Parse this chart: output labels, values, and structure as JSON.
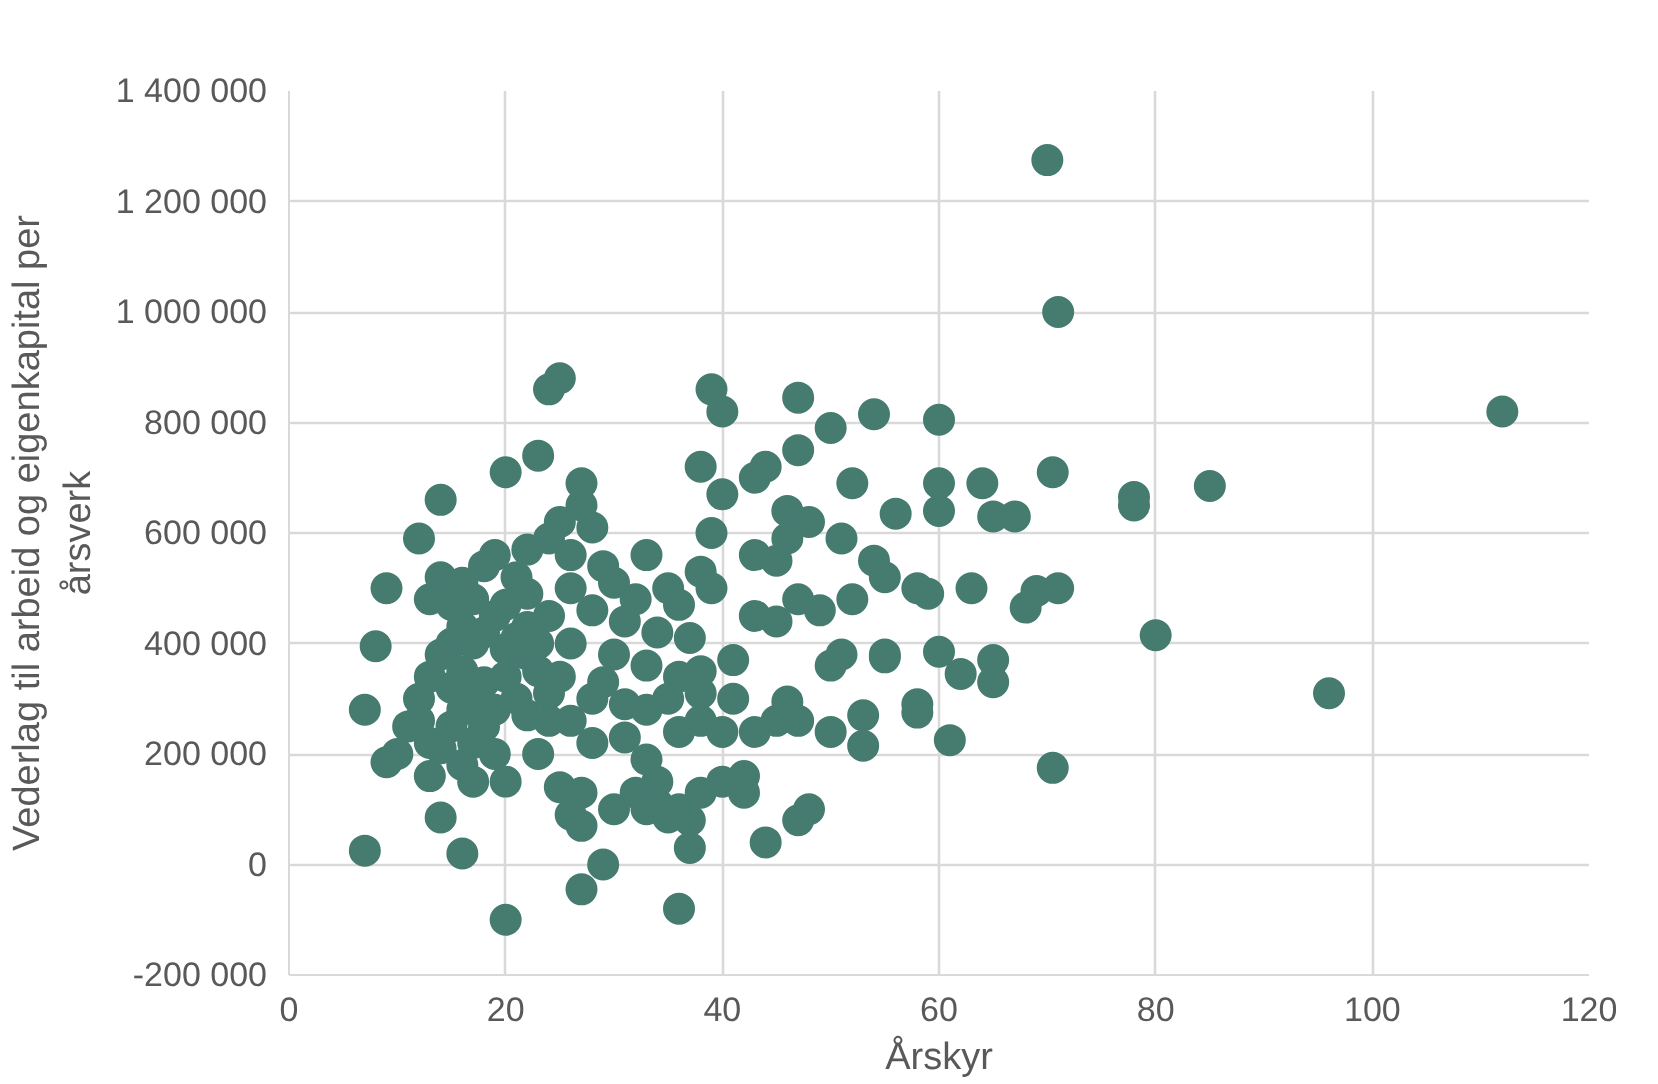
{
  "chart_data": {
    "type": "scatter",
    "xlabel": "Årskyr",
    "ylabel": "Vederlag til arbeid og eigenkapital per årsverk",
    "marker": "circle",
    "grid": true,
    "xlim": [
      0,
      120
    ],
    "xticks": [
      0,
      20,
      40,
      60,
      80,
      100,
      120
    ],
    "ylim": [
      -200000,
      1400000
    ],
    "yticks": [
      {
        "value": -200000,
        "label": "-200 000"
      },
      0,
      {
        "value": 200000,
        "label": "200 000"
      },
      {
        "value": 400000,
        "label": "400 000"
      },
      {
        "value": 600000,
        "label": "600 000"
      },
      {
        "value": 800000,
        "label": "800 000"
      },
      {
        "value": 1000000,
        "label": "1 000 000"
      },
      {
        "value": 1200000,
        "label": "1 200 000"
      },
      {
        "value": 1400000,
        "label": "1 400 000"
      }
    ],
    "series": [
      {
        "color": "#467c70",
        "x": [
          70,
          71,
          112,
          85,
          78,
          78,
          80,
          96,
          70.5,
          70.5,
          71,
          69,
          68,
          65,
          67,
          64,
          60,
          60,
          60,
          59,
          58,
          60,
          61,
          58,
          58,
          63,
          65,
          65,
          62,
          56,
          55,
          55,
          54,
          54,
          52,
          51,
          51,
          50,
          50,
          49,
          48,
          48,
          47,
          47,
          47,
          46,
          46,
          45,
          45,
          44,
          43,
          44,
          42,
          42,
          41,
          41,
          43,
          39,
          40,
          40,
          39,
          38,
          38,
          39,
          40,
          38,
          37,
          36,
          37,
          36,
          40,
          46,
          45,
          47,
          53,
          53,
          50,
          43,
          47,
          52,
          55,
          43,
          25,
          24,
          23,
          20,
          27,
          27,
          25,
          28,
          24,
          26,
          22,
          29,
          30,
          33,
          32,
          35,
          36,
          34,
          31,
          28,
          26,
          24,
          22,
          30,
          33,
          29,
          36,
          35,
          38,
          38,
          36,
          33,
          31,
          28,
          26,
          28,
          33,
          34,
          32,
          30,
          27,
          26,
          25,
          27,
          23,
          29,
          27,
          33,
          24,
          31,
          34,
          35,
          37,
          38,
          7,
          7,
          8,
          9,
          9,
          10,
          12,
          13,
          14,
          14,
          14,
          16,
          13,
          12,
          11,
          15,
          16,
          17,
          18,
          18,
          19,
          20,
          20,
          17,
          16,
          18,
          19,
          21,
          20,
          17,
          15,
          14,
          13,
          15,
          16,
          18,
          20,
          21,
          22,
          21,
          23,
          22,
          16,
          15,
          14,
          12,
          17,
          19,
          20,
          23,
          24,
          22,
          26,
          25,
          17,
          13,
          16,
          19
        ],
        "values": [
          1275000,
          1000000,
          820000,
          685000,
          665000,
          650000,
          415000,
          310000,
          175000,
          710000,
          500000,
          495000,
          465000,
          630000,
          630000,
          690000,
          805000,
          690000,
          640000,
          490000,
          500000,
          385000,
          225000,
          290000,
          275000,
          500000,
          370000,
          330000,
          345000,
          635000,
          520000,
          375000,
          815000,
          550000,
          690000,
          590000,
          380000,
          790000,
          360000,
          460000,
          620000,
          100000,
          845000,
          750000,
          80000,
          640000,
          590000,
          550000,
          440000,
          720000,
          700000,
          40000,
          160000,
          130000,
          370000,
          300000,
          240000,
          860000,
          820000,
          670000,
          600000,
          720000,
          530000,
          500000,
          240000,
          130000,
          80000,
          -80000,
          30000,
          100000,
          150000,
          295000,
          260000,
          260000,
          270000,
          215000,
          240000,
          450000,
          480000,
          480000,
          380000,
          560000,
          880000,
          860000,
          740000,
          710000,
          690000,
          650000,
          620000,
          610000,
          590000,
          560000,
          570000,
          540000,
          510000,
          560000,
          480000,
          500000,
          470000,
          420000,
          440000,
          460000,
          500000,
          450000,
          430000,
          380000,
          360000,
          330000,
          340000,
          300000,
          310000,
          260000,
          240000,
          280000,
          290000,
          300000,
          260000,
          220000,
          190000,
          150000,
          130000,
          100000,
          130000,
          90000,
          140000,
          70000,
          200000,
          0,
          -45000,
          100000,
          260000,
          230000,
          110000,
          85000,
          410000,
          350000,
          25000,
          280000,
          395000,
          500000,
          185000,
          200000,
          590000,
          160000,
          660000,
          520000,
          85000,
          20000,
          220000,
          300000,
          250000,
          400000,
          350000,
          300000,
          420000,
          250000,
          200000,
          -100000,
          150000,
          150000,
          180000,
          540000,
          560000,
          520000,
          470000,
          480000,
          470000,
          380000,
          340000,
          320000,
          280000,
          330000,
          390000,
          300000,
          270000,
          410000,
          350000,
          490000,
          430000,
          250000,
          210000,
          260000,
          220000,
          280000,
          340000,
          400000,
          310000,
          380000,
          400000,
          340000,
          400000,
          480000,
          510000,
          450000
        ]
      }
    ]
  }
}
